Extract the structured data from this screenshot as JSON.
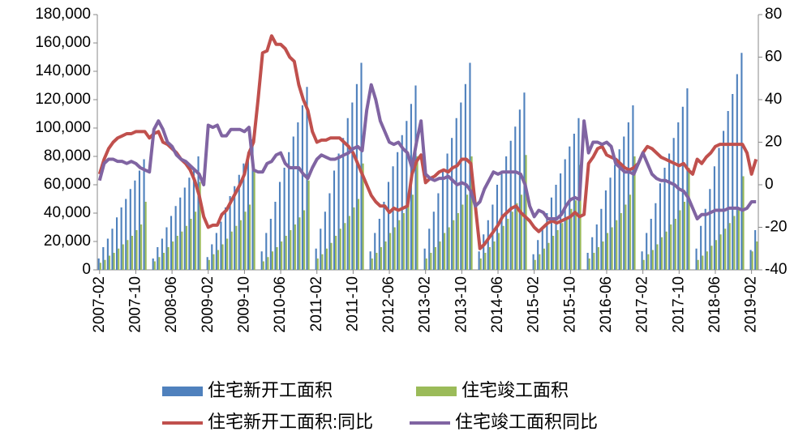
{
  "chart_data": {
    "type": "bar_line",
    "categories": [
      "2007-02",
      null,
      null,
      null,
      null,
      null,
      null,
      null,
      "2007-10",
      null,
      null,
      null,
      null,
      null,
      null,
      null,
      "2008-06",
      null,
      null,
      null,
      null,
      null,
      null,
      null,
      "2009-02",
      null,
      null,
      null,
      null,
      null,
      null,
      null,
      "2009-10",
      null,
      null,
      null,
      null,
      null,
      null,
      null,
      "2010-06",
      null,
      null,
      null,
      null,
      null,
      null,
      null,
      "2011-02",
      null,
      null,
      null,
      null,
      null,
      null,
      null,
      "2011-10",
      null,
      null,
      null,
      null,
      null,
      null,
      null,
      "2012-06",
      null,
      null,
      null,
      null,
      null,
      null,
      null,
      "2013-02",
      null,
      null,
      null,
      null,
      null,
      null,
      null,
      "2013-10",
      null,
      null,
      null,
      null,
      null,
      null,
      null,
      "2014-06",
      null,
      null,
      null,
      null,
      null,
      null,
      null,
      "2015-02",
      null,
      null,
      null,
      null,
      null,
      null,
      null,
      "2015-10",
      null,
      null,
      null,
      null,
      null,
      null,
      null,
      "2016-06",
      null,
      null,
      null,
      null,
      null,
      null,
      null,
      "2017-02",
      null,
      null,
      null,
      null,
      null,
      null,
      null,
      "2017-10",
      null,
      null,
      null,
      null,
      null,
      null,
      null,
      "2018-06",
      null,
      null,
      null,
      null,
      null,
      null,
      null,
      "2019-02",
      null
    ],
    "series": [
      {
        "name": "住宅新开工面积",
        "color": "#4f81bd",
        "kind": "bar",
        "values": [
          8000,
          16000,
          22000,
          29000,
          37000,
          44000,
          50000,
          57000,
          63000,
          70000,
          78000,
          null,
          8000,
          16000,
          22000,
          30000,
          38000,
          45000,
          51000,
          58000,
          65000,
          72000,
          80000,
          null,
          9000,
          18000,
          26000,
          34000,
          44000,
          52000,
          59000,
          67000,
          75000,
          83000,
          92000,
          null,
          13000,
          26000,
          36000,
          48000,
          62000,
          72000,
          83000,
          94000,
          104000,
          116000,
          129000,
          null,
          15000,
          29000,
          41000,
          54000,
          70000,
          82000,
          93000,
          107000,
          118000,
          131000,
          146000,
          null,
          13000,
          26000,
          36000,
          48000,
          62000,
          73000,
          83000,
          95000,
          105000,
          117000,
          130000,
          null,
          15000,
          29000,
          41000,
          54000,
          70000,
          82000,
          93000,
          107000,
          118000,
          131000,
          146000,
          null,
          13000,
          25000,
          35000,
          46000,
          60000,
          70000,
          80000,
          91000,
          101000,
          113000,
          125000,
          null,
          11000,
          21000,
          30000,
          40000,
          51000,
          60000,
          68000,
          78000,
          87000,
          96000,
          107000,
          null,
          12000,
          23000,
          32000,
          43000,
          56000,
          65000,
          74000,
          85000,
          94000,
          104000,
          116000,
          null,
          13000,
          26000,
          36000,
          47000,
          61000,
          72000,
          82000,
          93000,
          104000,
          115000,
          128000,
          null,
          15000,
          31000,
          43000,
          57000,
          73000,
          86000,
          98000,
          112000,
          124000,
          138000,
          153000,
          null,
          14000,
          28000
        ]
      },
      {
        "name": "住宅竣工面积",
        "color": "#9bbb59",
        "kind": "bar",
        "values": [
          5000,
          7000,
          10000,
          12000,
          15000,
          18000,
          21000,
          24000,
          28000,
          32000,
          48000,
          null,
          6000,
          9000,
          12000,
          16000,
          20000,
          24000,
          27000,
          31000,
          36000,
          41000,
          62000,
          null,
          7000,
          11000,
          14000,
          18000,
          22000,
          27000,
          31000,
          35000,
          41000,
          46000,
          70000,
          null,
          6000,
          9000,
          13000,
          16000,
          20000,
          24000,
          28000,
          32000,
          37000,
          42000,
          63000,
          null,
          8000,
          11000,
          15000,
          19000,
          24000,
          29000,
          33000,
          38000,
          44000,
          50000,
          75000,
          null,
          8000,
          12000,
          16000,
          20000,
          26000,
          30000,
          35000,
          40000,
          46000,
          53000,
          80000,
          null,
          8000,
          12000,
          16000,
          20000,
          26000,
          30000,
          35000,
          40000,
          46000,
          53000,
          80000,
          null,
          8000,
          12000,
          16000,
          20000,
          26000,
          31000,
          36000,
          41000,
          47000,
          53000,
          81000,
          null,
          7000,
          11000,
          15000,
          19000,
          24000,
          28000,
          33000,
          37000,
          43000,
          49000,
          74000,
          null,
          8000,
          12000,
          16000,
          20000,
          26000,
          30000,
          35000,
          40000,
          46000,
          53000,
          80000,
          null,
          7000,
          11000,
          14000,
          18000,
          23000,
          27000,
          32000,
          36000,
          42000,
          48000,
          72000,
          null,
          7000,
          10000,
          13000,
          17000,
          21000,
          25000,
          29000,
          33000,
          38000,
          44000,
          66000,
          null,
          13000,
          20000
        ]
      },
      {
        "name": "住宅新开工面积:同比",
        "color": "#c0504d",
        "kind": "line",
        "axis": "y2",
        "values": [
          5,
          12,
          17,
          20,
          22,
          23,
          24,
          24,
          25,
          25,
          25,
          22,
          24,
          25,
          20,
          19,
          17,
          15,
          12,
          10,
          7,
          2,
          -5,
          -15,
          -20,
          -19,
          -19,
          -14,
          -12,
          -8,
          -4,
          0,
          5,
          15,
          20,
          40,
          62,
          63,
          70,
          66,
          66,
          64,
          60,
          58,
          47,
          40,
          35,
          25,
          20,
          21,
          21,
          22,
          22,
          22,
          20,
          18,
          15,
          10,
          5,
          0,
          -5,
          -8,
          -10,
          -10,
          -13,
          -11,
          -12,
          -11,
          -10,
          5,
          11,
          14,
          1,
          3,
          4,
          6,
          7,
          6,
          8,
          9,
          12,
          12,
          10,
          -10,
          -30,
          -28,
          -25,
          -22,
          -19,
          -15,
          -13,
          -11,
          -10,
          -13,
          -15,
          -17,
          -20,
          -22,
          -20,
          -18,
          -17,
          -18,
          -17,
          -16,
          -15,
          -13,
          -15,
          -14,
          10,
          13,
          17,
          18,
          14,
          13,
          12,
          10,
          8,
          7,
          8,
          10,
          15,
          18,
          17,
          15,
          13,
          12,
          11,
          10,
          9,
          10,
          7,
          5,
          12,
          10,
          13,
          15,
          18,
          19,
          19,
          19,
          19,
          19,
          19,
          15,
          5,
          12
        ]
      },
      {
        "name": "住宅竣工面积同比",
        "color": "#8064a2",
        "kind": "line",
        "axis": "y2",
        "values": [
          2,
          10,
          12,
          12,
          11,
          11,
          10,
          11,
          10,
          8,
          7,
          6,
          26,
          30,
          26,
          20,
          18,
          14,
          12,
          11,
          9,
          7,
          5,
          0,
          28,
          27,
          28,
          23,
          23,
          26,
          26,
          26,
          25,
          27,
          7,
          6,
          6,
          10,
          11,
          14,
          15,
          10,
          8,
          8,
          8,
          5,
          3,
          8,
          12,
          14,
          13,
          12,
          12,
          13,
          14,
          15,
          17,
          18,
          16,
          35,
          47,
          40,
          30,
          25,
          20,
          19,
          20,
          17,
          15,
          8,
          20,
          30,
          5,
          3,
          2,
          3,
          3,
          4,
          2,
          0,
          1,
          0,
          -3,
          -10,
          -8,
          -2,
          2,
          6,
          5,
          6,
          6,
          6,
          6,
          5,
          0,
          -10,
          -15,
          -12,
          -13,
          -16,
          -16,
          -16,
          -14,
          -10,
          -7,
          -6,
          -7,
          30,
          15,
          20,
          20,
          19,
          20,
          18,
          10,
          8,
          6,
          6,
          5,
          10,
          15,
          10,
          5,
          3,
          2,
          2,
          1,
          0,
          -2,
          -3,
          -6,
          -11,
          -16,
          -14,
          -14,
          -13,
          -12,
          -12,
          -12,
          -11,
          -11,
          -11,
          -12,
          -11,
          -8,
          -8
        ]
      }
    ],
    "ylim": [
      0,
      180000
    ],
    "yticks": [
      0,
      {
        "value": 20000,
        "label": "20,000"
      },
      {
        "value": 40000,
        "label": "40,000"
      },
      {
        "value": 60000,
        "label": "60,000"
      },
      {
        "value": 80000,
        "label": "80,000"
      },
      {
        "value": 100000,
        "label": "100,000"
      },
      {
        "value": 120000,
        "label": "120,000"
      },
      {
        "value": 140000,
        "label": "140,000"
      },
      {
        "value": 160000,
        "label": "160,000"
      },
      {
        "value": 180000,
        "label": "180,000"
      }
    ],
    "y2lim": [
      -40,
      80
    ],
    "y2ticks": [
      -40,
      -20,
      0,
      20,
      40,
      60,
      80
    ],
    "grid": false
  }
}
